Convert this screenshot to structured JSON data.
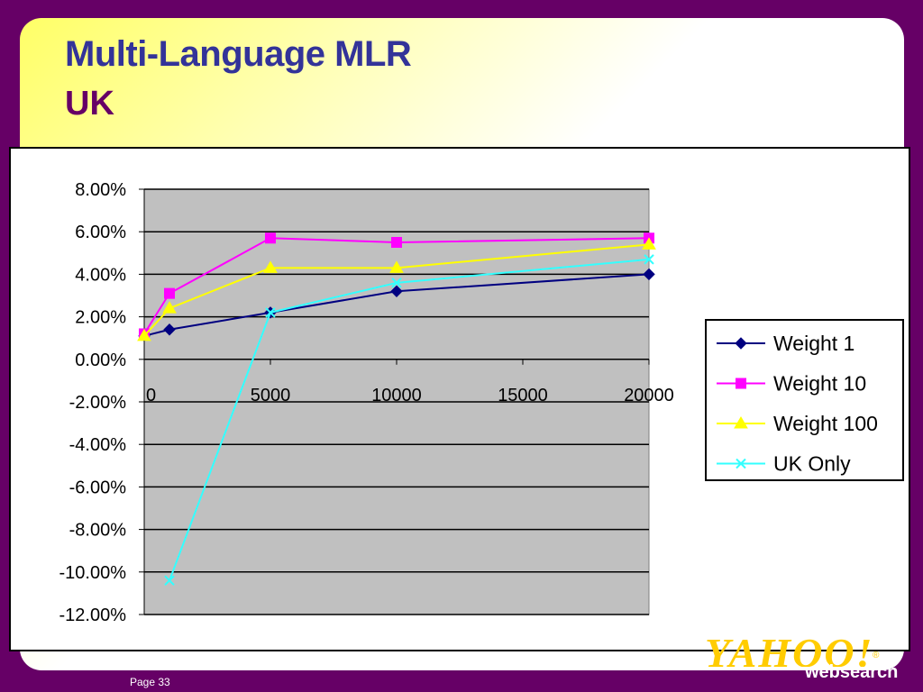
{
  "slide": {
    "title": "Multi-Language MLR",
    "subtitle": "UK",
    "page_label": "Page 33",
    "brand_logo": "YAHOO!",
    "brand_text": "websearch"
  },
  "colors": {
    "background": "#660066",
    "title": "#333399",
    "subtitle": "#660066",
    "plot_area": "#c0c0c0"
  },
  "chart_data": {
    "type": "scatter",
    "title": "",
    "xlabel": "",
    "ylabel": "",
    "xlim": [
      0,
      20000
    ],
    "ylim": [
      -12,
      8
    ],
    "x_ticks": [
      0,
      5000,
      10000,
      15000,
      20000
    ],
    "x_tick_labels": [
      "0",
      "5000",
      "10000",
      "15000",
      "20000"
    ],
    "y_ticks": [
      8,
      6,
      4,
      2,
      0,
      -2,
      -4,
      -6,
      -8,
      -10,
      -12
    ],
    "y_tick_labels": [
      "8.00%",
      "6.00%",
      "4.00%",
      "2.00%",
      "0.00%",
      "-2.00%",
      "-4.00%",
      "-6.00%",
      "-8.00%",
      "-10.00%",
      "-12.00%"
    ],
    "grid": true,
    "legend_position": "right",
    "series": [
      {
        "name": "Weight 1",
        "color": "#000080",
        "marker": "diamond",
        "x": [
          0,
          1000,
          5000,
          10000,
          20000
        ],
        "y": [
          1.1,
          1.4,
          2.2,
          3.2,
          4.0
        ]
      },
      {
        "name": "Weight 10",
        "color": "#ff00ff",
        "marker": "square",
        "x": [
          0,
          1000,
          5000,
          10000,
          20000
        ],
        "y": [
          1.2,
          3.1,
          5.7,
          5.5,
          5.7
        ]
      },
      {
        "name": "Weight 100",
        "color": "#ffff00",
        "marker": "triangle",
        "x": [
          0,
          1000,
          5000,
          10000,
          20000
        ],
        "y": [
          1.1,
          2.4,
          4.3,
          4.3,
          5.4
        ]
      },
      {
        "name": "UK Only",
        "color": "#33ffff",
        "marker": "x",
        "x": [
          1000,
          5000,
          10000,
          20000
        ],
        "y": [
          -10.4,
          2.2,
          3.6,
          4.7
        ]
      }
    ]
  }
}
